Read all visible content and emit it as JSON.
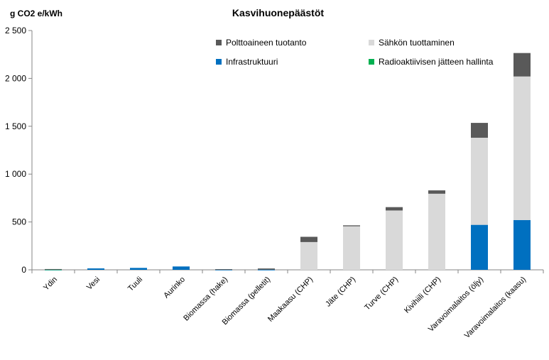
{
  "chart_data": {
    "type": "bar",
    "stacked": true,
    "title": "Kasvihuonepäästöt",
    "ylabel": "g CO2 e/kWh",
    "xlabel": "",
    "ylim": [
      0,
      2500
    ],
    "yticks": [
      0,
      500,
      1000,
      1500,
      2000,
      2500
    ],
    "ytick_labels": [
      "0",
      "500",
      "1 000",
      "1 500",
      "2 000",
      "2 500"
    ],
    "grid": false,
    "legend_position": "top-right",
    "categories": [
      "Ydin",
      "Vesi",
      "Tuuli",
      "Aurinko",
      "Biomassa (hake)",
      "Biomassa (pelletit)",
      "Maakaasu (CHP)",
      "Jäte (CHP)",
      "Turve (CHP)",
      "Kivihiili (CHP)",
      "Varavoimalaitos (öljy)",
      "Varavoimalaitos (kaasu)"
    ],
    "series": [
      {
        "name": "Infrastruktuuri",
        "color": "#0070C0",
        "values": [
          2,
          15,
          20,
          35,
          2,
          2,
          0,
          0,
          0,
          0,
          470,
          520
        ]
      },
      {
        "name": "Radioaktiivisen jätteen hallinta",
        "color": "#00B050",
        "values": [
          2,
          0,
          0,
          0,
          0,
          0,
          0,
          0,
          0,
          0,
          0,
          0
        ]
      },
      {
        "name": "Sähkön tuottaminen",
        "color": "#D9D9D9",
        "values": [
          0,
          0,
          0,
          0,
          0,
          0,
          290,
          455,
          620,
          795,
          910,
          1500
        ]
      },
      {
        "name": "Polttoaineen tuotanto",
        "color": "#595959",
        "values": [
          4,
          0,
          0,
          0,
          5,
          12,
          55,
          10,
          35,
          35,
          155,
          245
        ]
      }
    ],
    "legend_order": [
      "Polttoaineen tuotanto",
      "Sähkön tuottaminen",
      "Infrastruktuuri",
      "Radioaktiivisen jätteen hallinta"
    ]
  }
}
